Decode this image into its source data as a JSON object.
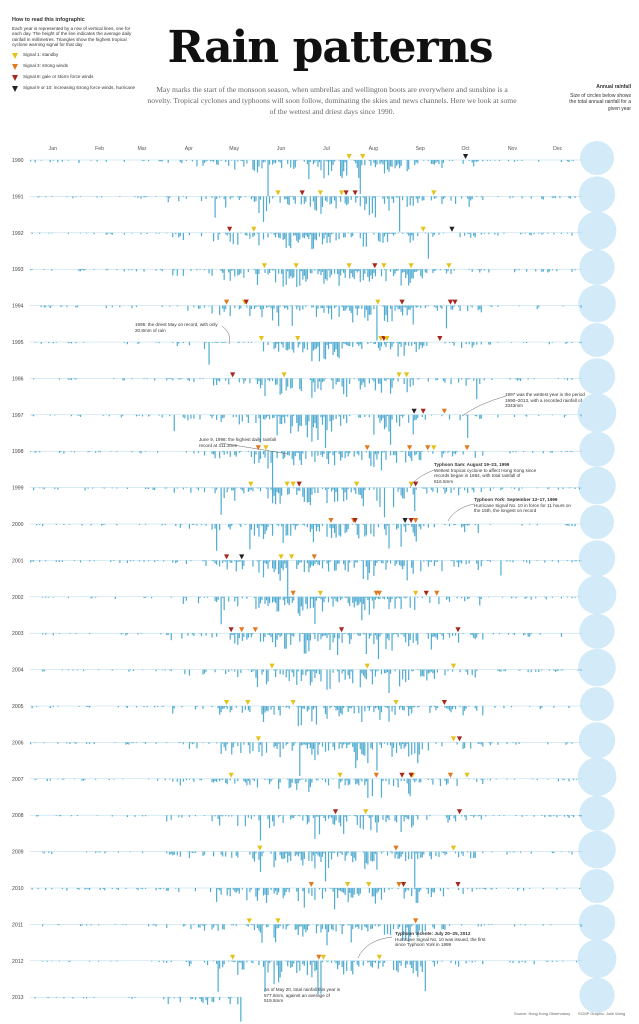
{
  "howto": {
    "title": "How to read this infographic",
    "text": "Each year is represented by a row of vertical lines, one for each day. The height of the line indicates the average daily rainfall in millimetres. Triangles show the highest tropical cyclone warning signal for that day",
    "legend": [
      {
        "label": "Signal 1: standby",
        "color": "#e4c21a"
      },
      {
        "label": "Signal 3: strong winds",
        "color": "#e0791f"
      },
      {
        "label": "Signal 8: gale or storm force winds",
        "color": "#a8271d"
      },
      {
        "label": "Signal 9 or 10: increasing strong force winds, hurricane",
        "color": "#222222"
      }
    ]
  },
  "title": "Rain patterns",
  "intro": "May marks the start of the monsoon season, when umbrellas and wellington boots are everywhere and sunshine is a novelty. Tropical cyclones and typhoons will soon follow, dominating the skies and news channels. Here we look at some of the wettest and driest days since 1990.",
  "annual_note": {
    "title": "Annual rainfall",
    "text": "Size of circles below shows the total annual rainfall for a given year"
  },
  "annotations": [
    {
      "key": "a1995",
      "text": "1995: the driest May on record, with only 20.8mm of rain"
    },
    {
      "key": "a1997",
      "text": "1997 was the wettest year in the period 1990–2013, with a recorded rainfall of 3343mm"
    },
    {
      "key": "a1998",
      "text": "June 9, 1998: the highest daily rainfall record at 411.3mm"
    },
    {
      "key": "sam_title",
      "text": "Typhoon Sam: August 19–23, 1999"
    },
    {
      "key": "sam_text",
      "text": "Wettest tropical cyclone to affect Hong Kong since records began in 1884, with total rainfall of 616.5mm"
    },
    {
      "key": "york_title",
      "text": "Typhoon York: September 13–17, 1999"
    },
    {
      "key": "york_text",
      "text": "Hurricane Signal No. 10 in force for 11 hours on the 15th, the longest on record"
    },
    {
      "key": "vicente_title",
      "text": "Typhoon Vicente: July 20–25, 2012"
    },
    {
      "key": "vicente_text",
      "text": "Hurricane Signal No. 10 was issued, the first since Typhoon York in 1999"
    },
    {
      "key": "a2013",
      "text": "As of May 20, total rainfall this year is 577.6mm, against an average of 519.5mm"
    }
  ],
  "source": {
    "left": "Source: Hong Kong Observatory",
    "right": "SCMP Graphic: Julie Wong"
  },
  "chart_data": {
    "type": "bar",
    "description_units": "daily rainfall (mm), hanging downward from each year's baseline; triangles mark tropical cyclone warning signal days",
    "months": [
      "Jan",
      "Feb",
      "Mar",
      "Apr",
      "May",
      "Jun",
      "Jul",
      "Aug",
      "Sep",
      "Oct",
      "Nov",
      "Dec"
    ],
    "years": [
      "1990",
      "1991",
      "1992",
      "1993",
      "1994",
      "1995",
      "1996",
      "1997",
      "1998",
      "1999",
      "2000",
      "2001",
      "2002",
      "2003",
      "2004",
      "2005",
      "2006",
      "2007",
      "2008",
      "2009",
      "2010",
      "2011",
      "2012",
      "2013"
    ],
    "highlight_days": [
      {
        "year": "1998",
        "day": 160,
        "mm": 411.3
      },
      {
        "year": "1995",
        "month": "May",
        "mm_total": 20.8
      },
      {
        "year": "1999",
        "days": [
          231,
          232,
          233,
          234,
          235
        ],
        "mm_total": 616.5
      },
      {
        "year": "1997",
        "annual_mm": 3343
      },
      {
        "year": "2013",
        "to_date_mm": 577.6,
        "average_mm": 519.5
      }
    ],
    "signal_colors": {
      "1": "#e4c21a",
      "3": "#e0791f",
      "8": "#a8271d",
      "10": "#222222"
    },
    "colors": {
      "rain": "#52acd1",
      "circle": "#d3ebf9",
      "baseline": "#9fcde2"
    }
  }
}
